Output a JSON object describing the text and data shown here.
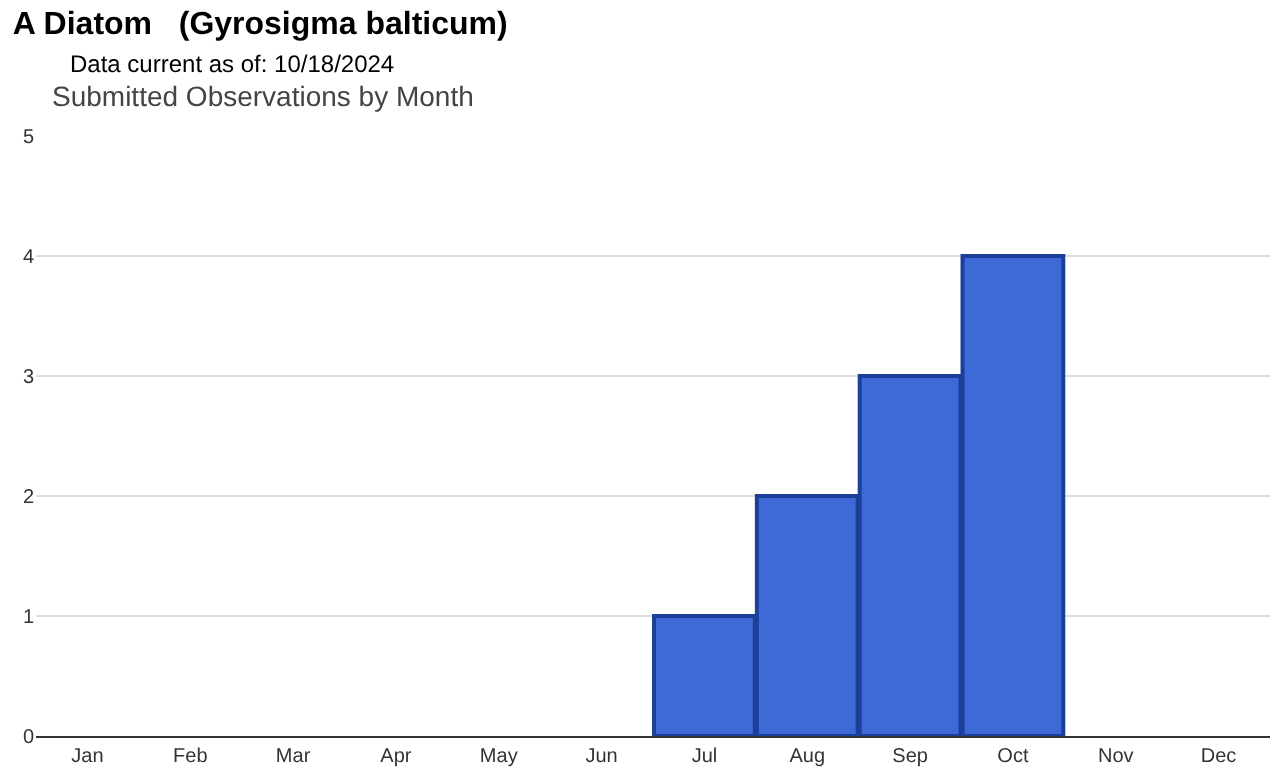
{
  "chart_data": {
    "type": "bar",
    "title": "A Diatom   (Gyrosigma balticum)",
    "subtitle": "Data current as of: 10/18/2024",
    "annotations": [
      "Submitted Observations by Month"
    ],
    "categories": [
      "Jan",
      "Feb",
      "Mar",
      "Apr",
      "May",
      "Jun",
      "Jul",
      "Aug",
      "Sep",
      "Oct",
      "Nov",
      "Dec"
    ],
    "values": [
      0,
      0,
      0,
      0,
      0,
      0,
      1,
      2,
      3,
      4,
      0,
      0
    ],
    "color": "#3d6ad6",
    "ylim": [
      0,
      5
    ],
    "yticks": [
      0,
      1,
      2,
      3,
      4,
      5
    ],
    "grid": "y"
  }
}
